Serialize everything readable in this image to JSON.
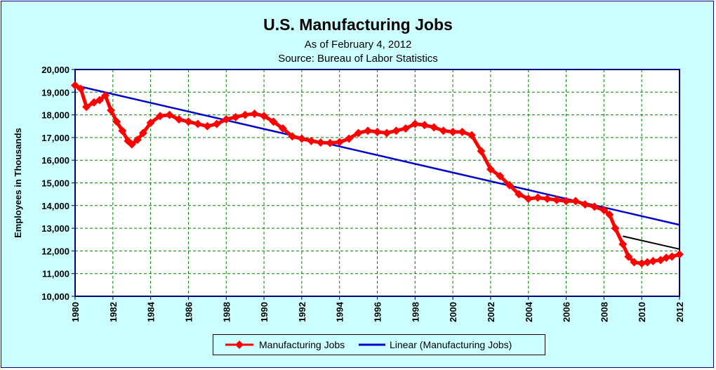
{
  "chart_data": {
    "type": "line",
    "title": "U.S. Manufacturing Jobs",
    "subtitle_1": "As of February 4, 2012",
    "subtitle_2": "Source: Bureau of Labor Statistics",
    "xlabel": "",
    "ylabel": "Employees in Thousands",
    "xlim": [
      1980,
      2012
    ],
    "ylim": [
      10000,
      20000
    ],
    "x_ticks": [
      "1980",
      "1982",
      "1984",
      "1986",
      "1988",
      "1990",
      "1992",
      "1994",
      "1996",
      "1998",
      "2000",
      "2002",
      "2004",
      "2006",
      "2008",
      "2010",
      "2012"
    ],
    "y_ticks": [
      "10,000",
      "11,000",
      "12,000",
      "13,000",
      "14,000",
      "15,000",
      "16,000",
      "17,000",
      "18,000",
      "19,000",
      "20,000"
    ],
    "grid": true,
    "legend": [
      "Manufacturing Jobs",
      "Linear (Manufacturing Jobs)"
    ],
    "legend_placement": "bottom-center",
    "colors": {
      "series": "#ff0000",
      "trend": "#0000cc",
      "extrapolation": "#000000",
      "grid": "#008000",
      "axis": "#000080"
    },
    "series": [
      {
        "name": "Manufacturing Jobs",
        "x": [
          1980.0,
          1980.3,
          1980.6,
          1981.0,
          1981.3,
          1981.6,
          1981.9,
          1982.2,
          1982.5,
          1982.8,
          1983.0,
          1983.3,
          1983.6,
          1984.0,
          1984.5,
          1985.0,
          1985.5,
          1986.0,
          1986.5,
          1987.0,
          1987.5,
          1988.0,
          1988.5,
          1989.0,
          1989.5,
          1990.0,
          1990.5,
          1991.0,
          1991.5,
          1992.0,
          1992.5,
          1993.0,
          1993.5,
          1994.0,
          1994.5,
          1995.0,
          1995.5,
          1996.0,
          1996.5,
          1997.0,
          1997.5,
          1998.0,
          1998.5,
          1999.0,
          1999.5,
          2000.0,
          2000.5,
          2001.0,
          2001.5,
          2002.0,
          2002.5,
          2003.0,
          2003.5,
          2004.0,
          2004.5,
          2005.0,
          2005.5,
          2006.0,
          2006.5,
          2007.0,
          2007.5,
          2008.0,
          2008.3,
          2008.6,
          2009.0,
          2009.3,
          2009.6,
          2010.0,
          2010.3,
          2010.6,
          2011.0,
          2011.3,
          2011.6,
          2012.0
        ],
        "values": [
          19300,
          19150,
          18350,
          18550,
          18650,
          18850,
          18200,
          17700,
          17300,
          16850,
          16700,
          16900,
          17200,
          17650,
          17950,
          18000,
          17800,
          17700,
          17600,
          17500,
          17600,
          17800,
          17900,
          18000,
          18050,
          17950,
          17700,
          17400,
          17050,
          16950,
          16850,
          16780,
          16760,
          16800,
          16950,
          17200,
          17300,
          17250,
          17200,
          17300,
          17400,
          17600,
          17550,
          17450,
          17300,
          17250,
          17250,
          17100,
          16400,
          15600,
          15300,
          14900,
          14500,
          14300,
          14350,
          14300,
          14250,
          14200,
          14200,
          14050,
          13950,
          13800,
          13600,
          13000,
          12300,
          11750,
          11500,
          11450,
          11500,
          11550,
          11600,
          11700,
          11750,
          11850
        ]
      },
      {
        "name": "Linear (Manufacturing Jobs)",
        "x": [
          1980,
          2012
        ],
        "values": [
          19300,
          13150
        ]
      },
      {
        "name": "extrapolation",
        "x": [
          2009,
          2012
        ],
        "values": [
          12650,
          12080
        ]
      }
    ]
  }
}
